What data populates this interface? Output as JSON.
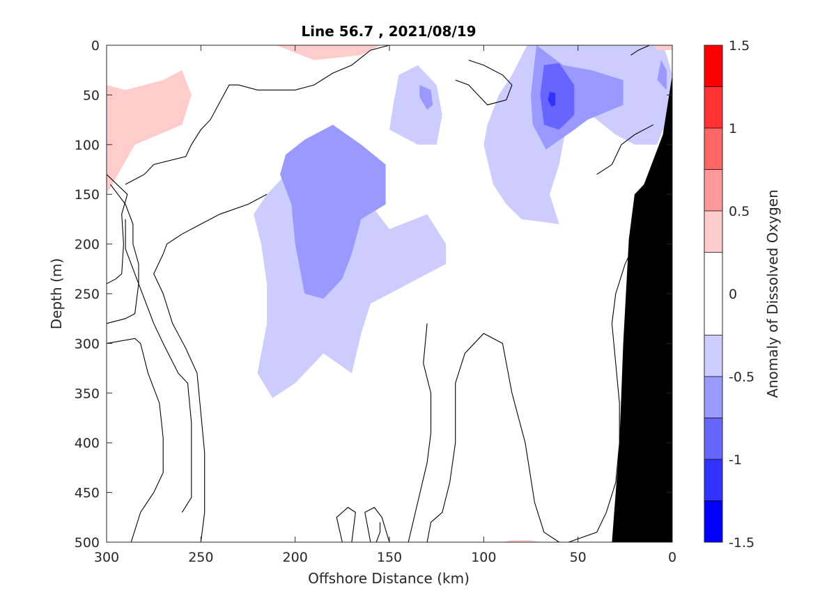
{
  "chart_data": {
    "type": "contour",
    "title": "Line 56.7 , 2021/08/19",
    "xlabel": "Offshore Distance (km)",
    "ylabel": "Depth (m)",
    "colorbar_label": "Anomaly of Dissolved Oxygen",
    "xlim": [
      300,
      0
    ],
    "ylim": [
      0,
      500
    ],
    "x_reversed": true,
    "y_reversed": true,
    "xticks": [
      300,
      250,
      200,
      150,
      100,
      50,
      0
    ],
    "xtick_labels": [
      "300",
      "250",
      "200",
      "150",
      "100",
      "50",
      "0"
    ],
    "yticks": [
      0,
      50,
      100,
      150,
      200,
      250,
      300,
      350,
      400,
      450,
      500
    ],
    "ytick_labels": [
      "0",
      "50",
      "100",
      "150",
      "200",
      "250",
      "300",
      "350",
      "400",
      "450",
      "500"
    ],
    "colorbar": {
      "range": [
        -1.5,
        1.5
      ],
      "ticks": [
        -1.5,
        -1,
        -0.5,
        0,
        0.5,
        1,
        1.5
      ],
      "tick_labels": [
        "-1.5",
        "-1",
        "-0.5",
        "0",
        "0.5",
        "1",
        "1.5"
      ],
      "levels": [
        -1.5,
        -1.25,
        -1.0,
        -0.75,
        -0.5,
        -0.25,
        0.25,
        0.5,
        0.75,
        1.0,
        1.25,
        1.5
      ],
      "colors": [
        "#0000ff",
        "#3333ff",
        "#6666ff",
        "#9999ff",
        "#ccccff",
        "#ffffff",
        "#ffcccc",
        "#ff9999",
        "#ff6666",
        "#ff3333",
        "#ff0000"
      ]
    },
    "regions": [
      {
        "level": -0.25,
        "color": "#ccccff",
        "points": [
          [
            215,
            150
          ],
          [
            200,
            120
          ],
          [
            185,
            112
          ],
          [
            165,
            130
          ],
          [
            160,
            160
          ],
          [
            150,
            185
          ],
          [
            130,
            170
          ],
          [
            120,
            200
          ],
          [
            120,
            220
          ],
          [
            140,
            240
          ],
          [
            150,
            250
          ],
          [
            160,
            260
          ],
          [
            165,
            290
          ],
          [
            170,
            330
          ],
          [
            185,
            310
          ],
          [
            200,
            340
          ],
          [
            212,
            355
          ],
          [
            220,
            330
          ],
          [
            215,
            280
          ],
          [
            215,
            240
          ],
          [
            218,
            200
          ],
          [
            222,
            170
          ]
        ]
      },
      {
        "level": -0.5,
        "color": "#9999ff",
        "points": [
          [
            205,
            110
          ],
          [
            195,
            95
          ],
          [
            180,
            80
          ],
          [
            165,
            100
          ],
          [
            152,
            120
          ],
          [
            152,
            160
          ],
          [
            165,
            175
          ],
          [
            170,
            210
          ],
          [
            175,
            235
          ],
          [
            185,
            255
          ],
          [
            195,
            250
          ],
          [
            200,
            200
          ],
          [
            202,
            160
          ],
          [
            208,
            130
          ]
        ]
      },
      {
        "level": -0.25,
        "color": "#ccccff",
        "points": [
          [
            145,
            30
          ],
          [
            135,
            20
          ],
          [
            125,
            40
          ],
          [
            122,
            70
          ],
          [
            125,
            100
          ],
          [
            135,
            100
          ],
          [
            150,
            85
          ],
          [
            148,
            60
          ]
        ]
      },
      {
        "level": -0.5,
        "color": "#9999ff",
        "points": [
          [
            134,
            40
          ],
          [
            128,
            45
          ],
          [
            127,
            60
          ],
          [
            130,
            65
          ],
          [
            134,
            52
          ]
        ]
      },
      {
        "level": -0.25,
        "color": "#ccccff",
        "points": [
          [
            77,
            0
          ],
          [
            5,
            0
          ],
          [
            3,
            10
          ],
          [
            0,
            30
          ],
          [
            0,
            80
          ],
          [
            5,
            85
          ],
          [
            8,
            100
          ],
          [
            20,
            100
          ],
          [
            30,
            90
          ],
          [
            50,
            60
          ],
          [
            55,
            70
          ],
          [
            60,
            120
          ],
          [
            65,
            150
          ],
          [
            60,
            180
          ],
          [
            80,
            175
          ],
          [
            88,
            160
          ],
          [
            95,
            140
          ],
          [
            100,
            100
          ],
          [
            98,
            80
          ],
          [
            92,
            50
          ],
          [
            85,
            30
          ]
        ]
      },
      {
        "level": -0.5,
        "color": "#9999ff",
        "points": [
          [
            72,
            0
          ],
          [
            58,
            20
          ],
          [
            43,
            25
          ],
          [
            26,
            35
          ],
          [
            26,
            60
          ],
          [
            45,
            75
          ],
          [
            52,
            85
          ],
          [
            67,
            105
          ],
          [
            74,
            80
          ],
          [
            75,
            50
          ]
        ]
      },
      {
        "level": -0.75,
        "color": "#6666ff",
        "points": [
          [
            68,
            20
          ],
          [
            60,
            18
          ],
          [
            52,
            40
          ],
          [
            52,
            70
          ],
          [
            60,
            85
          ],
          [
            68,
            80
          ],
          [
            70,
            50
          ]
        ]
      },
      {
        "level": -1.0,
        "color": "#3333ff",
        "points": [
          [
            65,
            47
          ],
          [
            62,
            48
          ],
          [
            62,
            60
          ],
          [
            64,
            62
          ],
          [
            66,
            55
          ]
        ]
      },
      {
        "level": 0.25,
        "color": "#ffcccc",
        "points": [
          [
            300,
            40
          ],
          [
            290,
            45
          ],
          [
            270,
            35
          ],
          [
            260,
            25
          ],
          [
            255,
            50
          ],
          [
            260,
            80
          ],
          [
            285,
            100
          ],
          [
            300,
            150
          ]
        ]
      },
      {
        "level": 0.25,
        "color": "#ffcccc",
        "points": [
          [
            210,
            0
          ],
          [
            155,
            0
          ],
          [
            165,
            10
          ],
          [
            190,
            15
          ]
        ]
      },
      {
        "level": 0.25,
        "color": "#ffcccc",
        "points": [
          [
            85,
            498
          ],
          [
            75,
            498
          ],
          [
            70,
            500
          ],
          [
            90,
            500
          ]
        ]
      },
      {
        "level": 0.25,
        "color": "#ffcccc",
        "points": [
          [
            10,
            0
          ],
          [
            0,
            0
          ],
          [
            0,
            5
          ],
          [
            8,
            5
          ]
        ]
      },
      {
        "level": -0.5,
        "color": "#9999ff",
        "points": [
          [
            6,
            15
          ],
          [
            3,
            25
          ],
          [
            3,
            45
          ],
          [
            8,
            35
          ]
        ]
      }
    ],
    "land_mask": {
      "color": "#000000",
      "points": [
        [
          0,
          30
        ],
        [
          5,
          90
        ],
        [
          15,
          140
        ],
        [
          20,
          150
        ],
        [
          23,
          195
        ],
        [
          26,
          300
        ],
        [
          28,
          400
        ],
        [
          32,
          500
        ],
        [
          0,
          500
        ]
      ]
    },
    "contours_zero": [
      [
        [
          300,
          240
        ],
        [
          295,
          235
        ],
        [
          292,
          230
        ],
        [
          291,
          200
        ],
        [
          292,
          170
        ],
        [
          289,
          150
        ],
        [
          300,
          130
        ]
      ],
      [
        [
          300,
          280
        ],
        [
          290,
          275
        ],
        [
          285,
          270
        ],
        [
          283,
          240
        ],
        [
          283,
          220
        ],
        [
          286,
          200
        ],
        [
          286,
          180
        ],
        [
          290,
          160
        ],
        [
          298,
          140
        ]
      ],
      [
        [
          290,
          140
        ],
        [
          280,
          130
        ],
        [
          275,
          120
        ],
        [
          258,
          112
        ],
        [
          255,
          100
        ],
        [
          250,
          85
        ],
        [
          245,
          75
        ],
        [
          235,
          40
        ],
        [
          230,
          40
        ],
        [
          220,
          45
        ],
        [
          200,
          45
        ],
        [
          190,
          40
        ],
        [
          180,
          28
        ],
        [
          170,
          20
        ],
        [
          160,
          5
        ],
        [
          150,
          0
        ]
      ],
      [
        [
          300,
          300
        ],
        [
          285,
          295
        ],
        [
          282,
          300
        ],
        [
          278,
          330
        ],
        [
          272,
          360
        ],
        [
          270,
          395
        ],
        [
          270,
          430
        ],
        [
          275,
          450
        ],
        [
          282,
          470
        ],
        [
          287,
          500
        ]
      ],
      [
        [
          250,
          500
        ],
        [
          248,
          470
        ],
        [
          248,
          410
        ],
        [
          250,
          370
        ],
        [
          252,
          330
        ],
        [
          258,
          305
        ],
        [
          265,
          280
        ],
        [
          270,
          250
        ],
        [
          275,
          230
        ],
        [
          270,
          210
        ],
        [
          268,
          200
        ],
        [
          260,
          190
        ],
        [
          250,
          180
        ],
        [
          240,
          170
        ],
        [
          225,
          160
        ],
        [
          215,
          150
        ]
      ],
      [
        [
          260,
          470
        ],
        [
          255,
          455
        ],
        [
          255,
          410
        ],
        [
          255,
          380
        ],
        [
          257,
          340
        ],
        [
          262,
          330
        ],
        [
          270,
          300
        ],
        [
          275,
          280
        ],
        [
          280,
          255
        ],
        [
          285,
          230
        ],
        [
          290,
          205
        ],
        [
          290,
          175
        ]
      ],
      [
        [
          170,
          500
        ],
        [
          168,
          470
        ],
        [
          172,
          465
        ],
        [
          178,
          475
        ],
        [
          175,
          500
        ]
      ],
      [
        [
          160,
          500
        ],
        [
          163,
          470
        ],
        [
          158,
          465
        ],
        [
          154,
          475
        ],
        [
          150,
          500
        ]
      ],
      [
        [
          155,
          480
        ],
        [
          155,
          490
        ],
        [
          157,
          500
        ]
      ],
      [
        [
          130,
          500
        ],
        [
          128,
          480
        ],
        [
          122,
          470
        ],
        [
          118,
          440
        ],
        [
          115,
          400
        ],
        [
          115,
          340
        ],
        [
          110,
          310
        ],
        [
          100,
          290
        ],
        [
          90,
          300
        ],
        [
          85,
          350
        ],
        [
          78,
          400
        ],
        [
          73,
          460
        ],
        [
          68,
          490
        ],
        [
          60,
          500
        ]
      ],
      [
        [
          140,
          500
        ],
        [
          135,
          460
        ],
        [
          130,
          420
        ],
        [
          128,
          390
        ],
        [
          128,
          350
        ],
        [
          132,
          320
        ],
        [
          130,
          280
        ]
      ],
      [
        [
          55,
          500
        ],
        [
          40,
          490
        ],
        [
          35,
          470
        ],
        [
          30,
          440
        ],
        [
          28,
          400
        ],
        [
          28,
          360
        ],
        [
          30,
          320
        ],
        [
          32,
          280
        ],
        [
          30,
          250
        ],
        [
          25,
          220
        ],
        [
          20,
          200
        ]
      ],
      [
        [
          108,
          15
        ],
        [
          100,
          20
        ],
        [
          90,
          30
        ],
        [
          85,
          40
        ],
        [
          88,
          55
        ],
        [
          98,
          60
        ],
        [
          103,
          50
        ],
        [
          108,
          40
        ],
        [
          115,
          35
        ]
      ],
      [
        [
          22,
          10
        ],
        [
          18,
          5
        ],
        [
          12,
          0
        ]
      ],
      [
        [
          40,
          130
        ],
        [
          32,
          120
        ],
        [
          27,
          100
        ],
        [
          20,
          90
        ],
        [
          10,
          80
        ]
      ]
    ]
  }
}
